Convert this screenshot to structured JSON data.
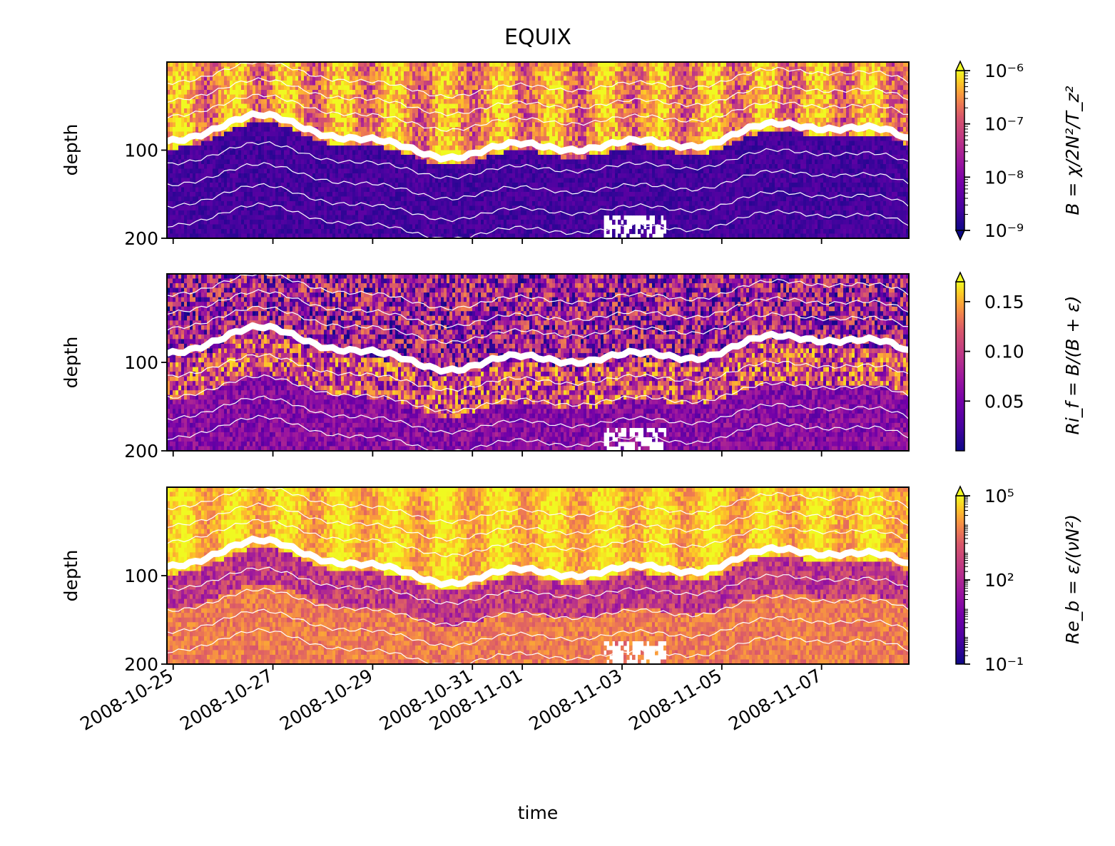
{
  "chart_data": {
    "type": "heatmap",
    "title": "EQUIX",
    "xlabel": "time",
    "x_ticks": [
      "2008-10-25",
      "2008-10-27",
      "2008-10-29",
      "2008-10-31",
      "2008-11-01",
      "2008-11-03",
      "2008-11-05",
      "2008-11-07"
    ],
    "x_range": [
      "2008-10-24T21:00",
      "2008-11-08T18:00"
    ],
    "shared_x": true,
    "colormap": "plasma",
    "overlay": "white isopycnal contour lines",
    "panels": [
      {
        "ylabel": "depth",
        "y_ticks": [
          "100",
          "200"
        ],
        "ylim": [
          200,
          0
        ],
        "colorbar": {
          "label": "B = χ/2N²/T_z²",
          "scale": "log",
          "range": [
            1e-09,
            1e-06
          ],
          "ticks": [
            "10⁻⁹",
            "10⁻⁸",
            "10⁻⁷",
            "10⁻⁶"
          ],
          "extend": "both"
        }
      },
      {
        "ylabel": "depth",
        "y_ticks": [
          "100",
          "200"
        ],
        "ylim": [
          200,
          0
        ],
        "colorbar": {
          "label": "Ri_f = B/(B + ε)",
          "scale": "linear",
          "range": [
            0.0,
            0.17
          ],
          "ticks": [
            "0.05",
            "0.10",
            "0.15"
          ],
          "extend": "max"
        }
      },
      {
        "ylabel": "depth",
        "y_ticks": [
          "100",
          "200"
        ],
        "ylim": [
          200,
          0
        ],
        "colorbar": {
          "label": "Re_b = ε/(νN²)",
          "scale": "log",
          "range": [
            0.1,
            100000
          ],
          "ticks": [
            "10⁻¹",
            "10²",
            "10⁵"
          ],
          "extend": "max"
        }
      }
    ]
  }
}
